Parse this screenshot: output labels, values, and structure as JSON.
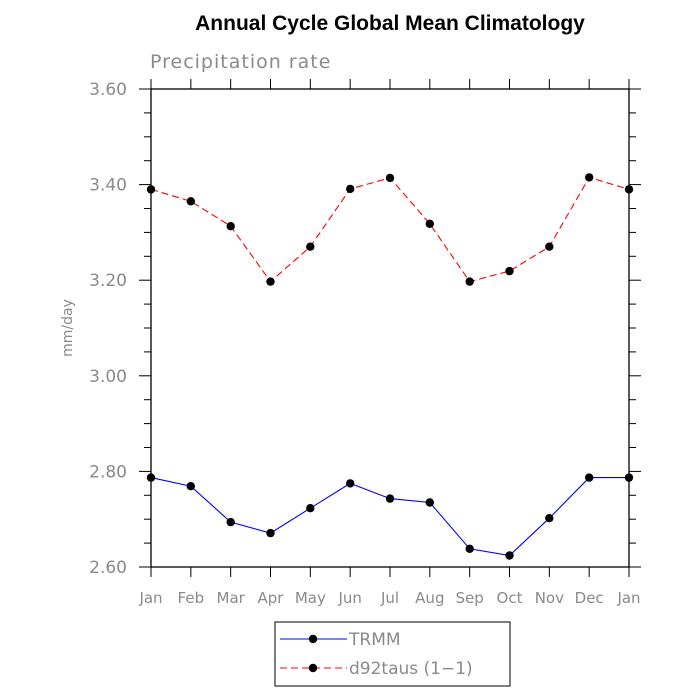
{
  "chart_data": {
    "type": "line",
    "title": "Annual Cycle Global Mean Climatology",
    "subtitle": "Precipitation rate",
    "xlabel": "",
    "ylabel": "mm/day",
    "categories": [
      "Jan",
      "Feb",
      "Mar",
      "Apr",
      "May",
      "Jun",
      "Jul",
      "Aug",
      "Sep",
      "Oct",
      "Nov",
      "Dec",
      "Jan"
    ],
    "ylim": [
      2.6,
      3.6
    ],
    "yticks": [
      2.6,
      2.8,
      3.0,
      3.2,
      3.4,
      3.6
    ],
    "ytick_labels": [
      "2.60",
      "2.80",
      "3.00",
      "3.20",
      "3.40",
      "3.60"
    ],
    "ytick_minor_step": 0.05,
    "grid": false,
    "legend_position": "bottom-center",
    "series": [
      {
        "name": "TRMM",
        "color": "#0000ff",
        "style": "solid",
        "marker": "filled-circle",
        "values": [
          2.787,
          2.769,
          2.694,
          2.671,
          2.723,
          2.775,
          2.743,
          2.735,
          2.638,
          2.624,
          2.702,
          2.787,
          2.787
        ]
      },
      {
        "name": "d92taus (1−1)",
        "color": "#ff0000",
        "style": "dashed",
        "marker": "filled-circle",
        "values": [
          3.39,
          3.365,
          3.313,
          3.197,
          3.27,
          3.391,
          3.414,
          3.318,
          3.197,
          3.219,
          3.27,
          3.415,
          3.39
        ]
      }
    ]
  }
}
